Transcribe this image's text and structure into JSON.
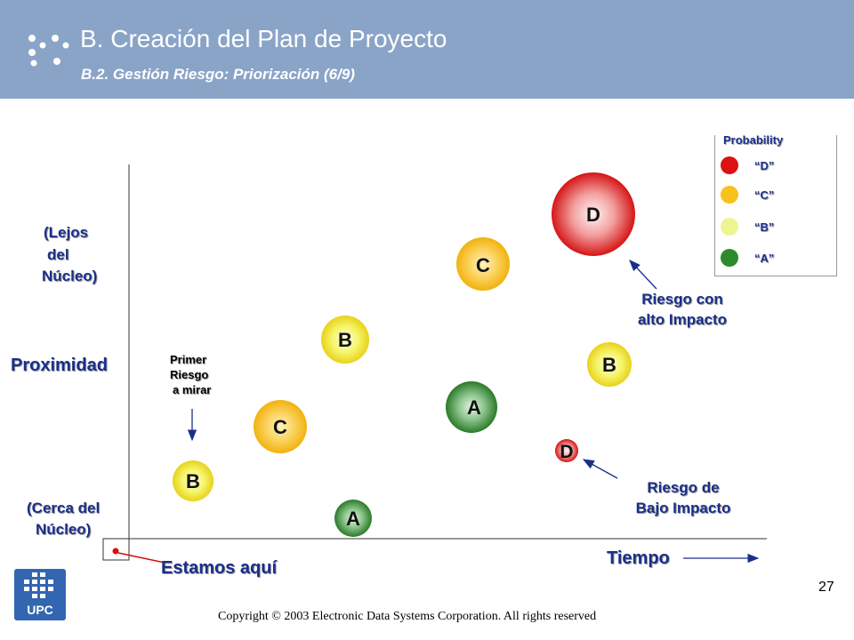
{
  "header": {
    "title": "B. Creación del Plan de Proyecto",
    "subtitle": "B.2. Gestión Riesgo: Priorización (6/9)"
  },
  "axes": {
    "y_label": "Proximidad",
    "y_top_label": [
      "(Lejos",
      "del",
      "Núcleo)"
    ],
    "y_bottom_label": [
      "(Cerca del",
      "Núcleo)"
    ],
    "x_label": "Tiempo"
  },
  "annotations": {
    "first_risk": [
      "Primer",
      "Riesgo",
      "a mirar"
    ],
    "high_impact": [
      "Riesgo con",
      "alto Impacto"
    ],
    "low_impact": [
      "Riesgo de",
      "Bajo Impacto"
    ],
    "here": "Estamos aquí"
  },
  "legend": {
    "title": "Probability",
    "items": [
      {
        "label": "“D”",
        "color": "#dd1111"
      },
      {
        "label": "“C”",
        "color": "#f7c21b"
      },
      {
        "label": "“B”",
        "color": "#eef590"
      },
      {
        "label": "“A”",
        "color": "#2d8a2d"
      }
    ]
  },
  "risks": [
    {
      "label": "B",
      "probability": "B"
    },
    {
      "label": "C",
      "probability": "C"
    },
    {
      "label": "A",
      "probability": "A"
    },
    {
      "label": "B",
      "probability": "B"
    },
    {
      "label": "A",
      "probability": "A"
    },
    {
      "label": "C",
      "probability": "C"
    },
    {
      "label": "D",
      "probability": "D"
    },
    {
      "label": "B",
      "probability": "B"
    },
    {
      "label": "D",
      "probability": "D"
    }
  ],
  "footer": {
    "page_number": "27",
    "copyright": "Copyright © 2003 Electronic Data Systems Corporation. All rights reserved",
    "logo_text": "UPC"
  }
}
